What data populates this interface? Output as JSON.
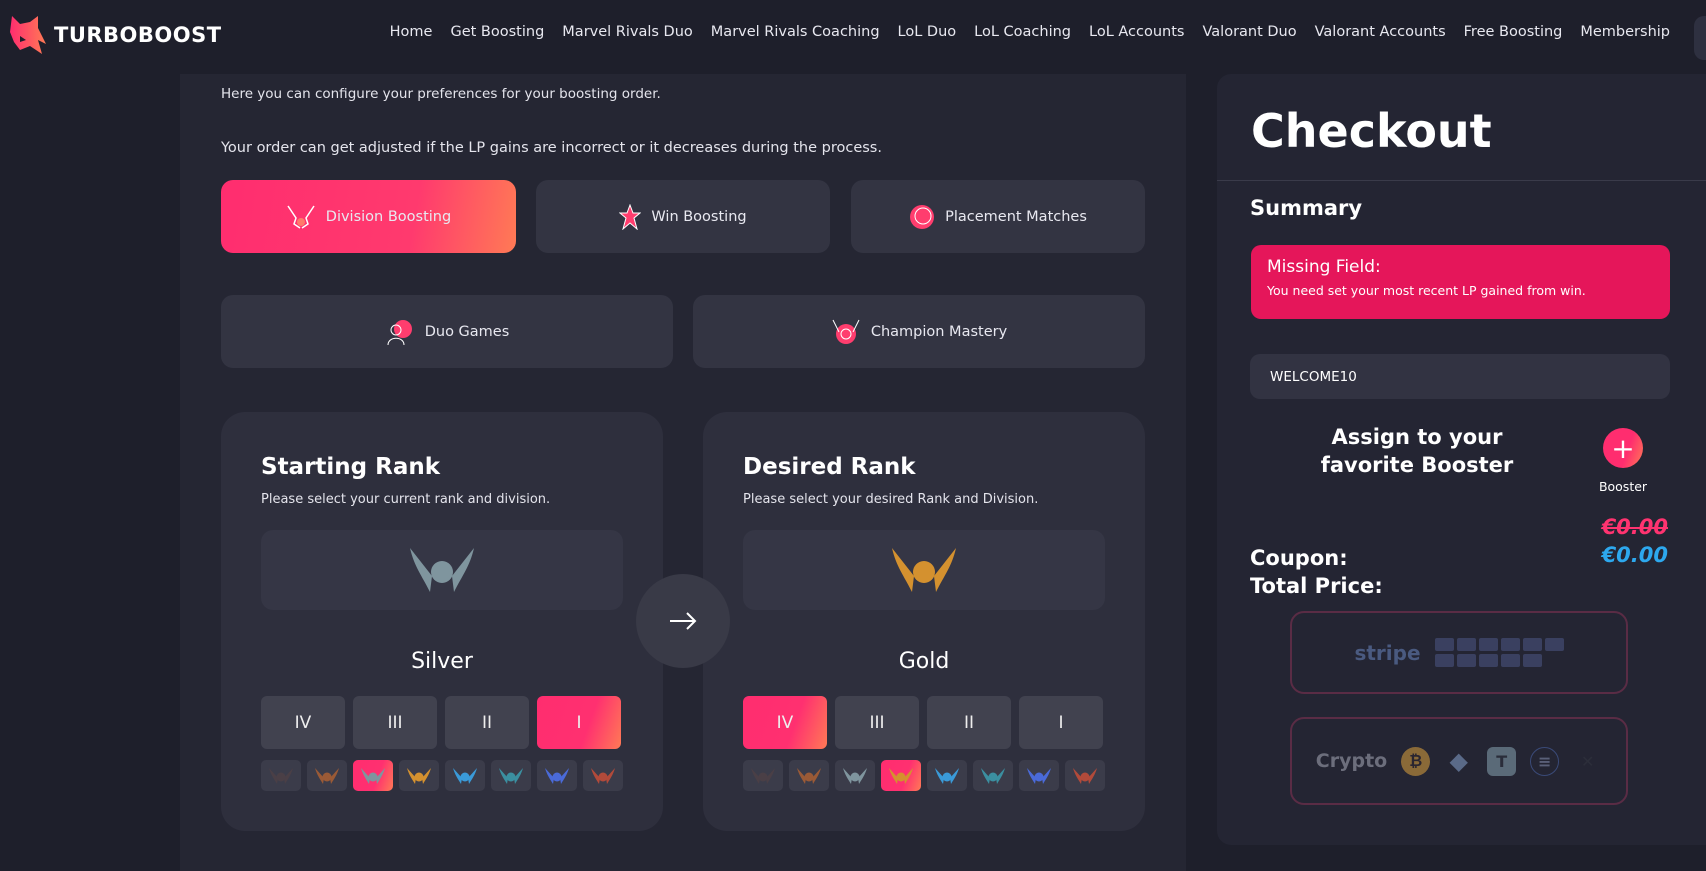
{
  "brand": {
    "name": "TURBOBOOST",
    "accent": "#ff2d6f"
  },
  "nav": [
    "Home",
    "Get Boosting",
    "Marvel Rivals Duo",
    "Marvel Rivals Coaching",
    "LoL Duo",
    "LoL Coaching",
    "LoL Accounts",
    "Valorant Duo",
    "Valorant Accounts",
    "Free Boosting",
    "Membership"
  ],
  "main": {
    "intro1": "Here you can configure your preferences for your boosting order.",
    "intro2": "Your order can get adjusted if the LP gains are incorrect or it decreases during the process.",
    "services": [
      {
        "label": "Division Boosting",
        "icon": "wings-icon",
        "active": true
      },
      {
        "label": "Win Boosting",
        "icon": "star-icon",
        "active": false
      },
      {
        "label": "Placement Matches",
        "icon": "placement-icon",
        "active": false
      },
      {
        "label": "Duo Games",
        "icon": "duo-icon",
        "active": false
      },
      {
        "label": "Champion Mastery",
        "icon": "mastery-icon",
        "active": false
      }
    ],
    "starting": {
      "title": "Starting Rank",
      "subtitle": "Please select your current rank and division.",
      "rank": "Silver",
      "selected_division": "I",
      "selected_tier": 3
    },
    "desired": {
      "title": "Desired Rank",
      "subtitle": "Please select your desired Rank and Division.",
      "rank": "Gold",
      "selected_division": "IV",
      "selected_tier": 4
    },
    "divisions": [
      "IV",
      "III",
      "II",
      "I"
    ],
    "tier_colors": [
      "#4a3f46",
      "#9a5a36",
      "#7f959e",
      "#d4912f",
      "#3a9ad8",
      "#3b8fa0",
      "#4a6ad8",
      "#b24a3a"
    ]
  },
  "checkout": {
    "title": "Checkout",
    "summary": "Summary",
    "error_title": "Missing Field:",
    "error_message": "You need set your most recent LP gained from win.",
    "coupon_value": "WELCOME10",
    "assign_text": "Assign to your favorite Booster",
    "booster_label": "Booster",
    "original_price": "€0.00",
    "total_price": "€0.00",
    "coupon_label": "Coupon:",
    "total_label": "Total Price:",
    "stripe_label": "stripe",
    "crypto_label": "Crypto"
  }
}
